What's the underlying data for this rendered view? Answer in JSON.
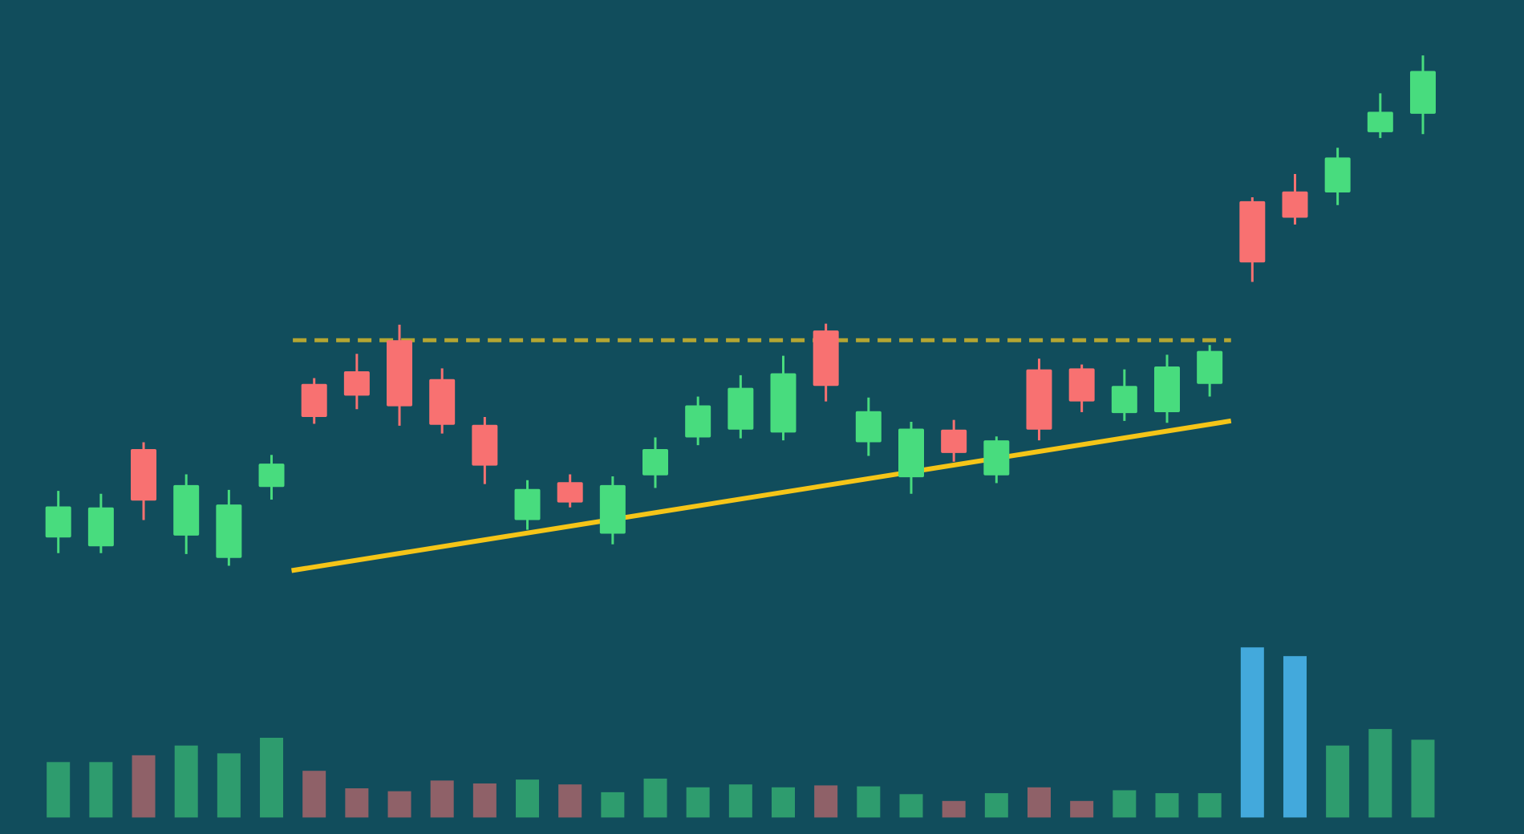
{
  "chart_data": {
    "type": "candlestick",
    "title": "",
    "xlabel": "",
    "ylabel": "",
    "ylim": [
      0,
      858
    ],
    "grid": false,
    "colors": {
      "background": "#114d5c",
      "up": "#48dc7e",
      "down": "#f87171",
      "volume_up": "#2e9c6e",
      "volume_down": "#8f6168",
      "volume_highlight": "#43a9dc",
      "support_line": "#f5c518",
      "resistance_line": "#b5a632"
    },
    "candles": [
      [
        305,
        353,
        289,
        337
      ],
      [
        296,
        350,
        289,
        336
      ],
      [
        396,
        403,
        323,
        343
      ],
      [
        307,
        370,
        288,
        359
      ],
      [
        284,
        354,
        276,
        339
      ],
      [
        357,
        390,
        344,
        381
      ],
      [
        463,
        469,
        422,
        429
      ],
      [
        476,
        494,
        437,
        451
      ],
      [
        508,
        524,
        420,
        440
      ],
      [
        468,
        479,
        412,
        421
      ],
      [
        421,
        429,
        360,
        379
      ],
      [
        323,
        364,
        313,
        355
      ],
      [
        362,
        370,
        336,
        341
      ],
      [
        309,
        368,
        298,
        359
      ],
      [
        369,
        408,
        356,
        396
      ],
      [
        408,
        450,
        400,
        441
      ],
      [
        416,
        472,
        407,
        459
      ],
      [
        413,
        492,
        405,
        474
      ],
      [
        518,
        525,
        445,
        461
      ],
      [
        403,
        449,
        389,
        435
      ],
      [
        367,
        424,
        350,
        417
      ],
      [
        416,
        426,
        383,
        392
      ],
      [
        369,
        409,
        361,
        405
      ],
      [
        478,
        489,
        405,
        416
      ],
      [
        479,
        483,
        434,
        445
      ],
      [
        433,
        478,
        425,
        461
      ],
      [
        434,
        493,
        423,
        481
      ],
      [
        463,
        503,
        450,
        497
      ],
      [
        651,
        655,
        568,
        588
      ],
      [
        661,
        679,
        627,
        634
      ],
      [
        660,
        706,
        647,
        696
      ],
      [
        722,
        762,
        716,
        743
      ],
      [
        741,
        801,
        720,
        785
      ]
    ],
    "candle_fields": [
      "open",
      "high",
      "low",
      "close"
    ],
    "volume": [
      57,
      57,
      64,
      74,
      66,
      82,
      48,
      30,
      27,
      38,
      35,
      39,
      34,
      26,
      40,
      31,
      34,
      31,
      33,
      32,
      24,
      17,
      25,
      31,
      17,
      28,
      25,
      25,
      175,
      166,
      74,
      91,
      80
    ],
    "volume_highlight_index": [
      28,
      29
    ],
    "resistance": {
      "style": "dashed",
      "from": [
        5.5,
        508
      ],
      "to": [
        27.5,
        508
      ]
    },
    "support": {
      "style": "solid",
      "from": [
        5.47,
        271
      ],
      "to": [
        27.5,
        425
      ]
    }
  }
}
